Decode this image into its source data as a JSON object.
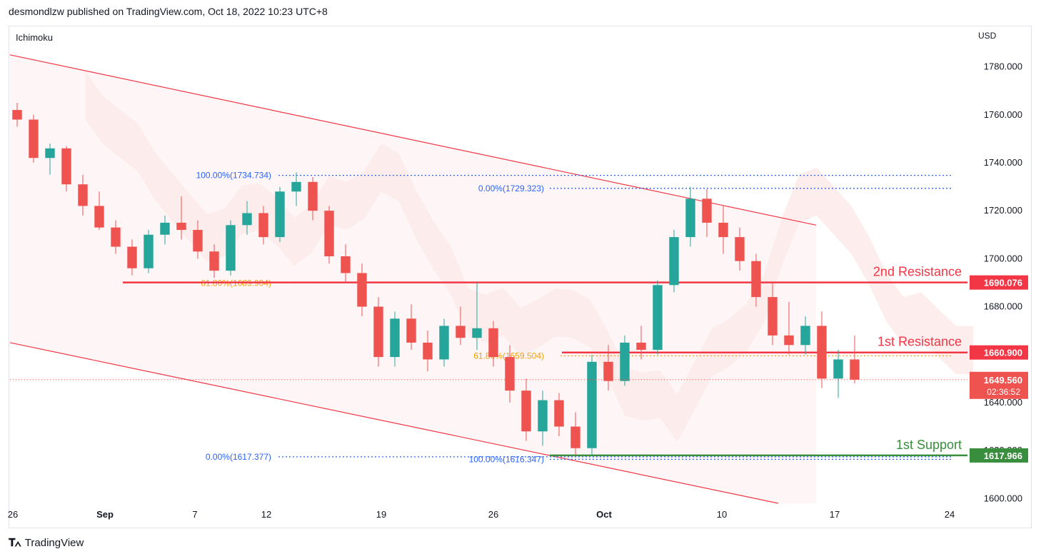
{
  "header": {
    "published_text": "desmondlzw published on TradingView.com, Oct 18, 2022 10:23 UTC+8"
  },
  "indicator_label": "Ichimoku",
  "currency_label": "USD",
  "footer": {
    "brand": "TradingView",
    "logo_icon": "tradingview-logo-icon"
  },
  "colors": {
    "up": "#26a69a",
    "down": "#ef5350",
    "resistance": "#f23645",
    "support": "#388e3c",
    "fib": "#2962ff",
    "fib_mid": "#f59e0b",
    "channel": "#f23645",
    "cloud_red": "#fde8e8",
    "cloud_green": "#e8f3ec"
  },
  "chart_data": {
    "type": "candlestick",
    "title": "",
    "ylim": [
      1595,
      1795
    ],
    "y_ticks": [
      "1600.000",
      "1620.000",
      "1640.000",
      "1660.000",
      "1680.000",
      "1700.000",
      "1720.000",
      "1740.000",
      "1760.000",
      "1780.000"
    ],
    "y_tick_values": [
      1600,
      1620,
      1640,
      1660,
      1680,
      1700,
      1720,
      1740,
      1760,
      1780
    ],
    "x_ticks": [
      {
        "label": "26",
        "bar": 0,
        "bold": false
      },
      {
        "label": "Sep",
        "bar": 5,
        "bold": true
      },
      {
        "label": "7",
        "bar": 13,
        "bold": false
      },
      {
        "label": "12",
        "bar": 16,
        "bold": false
      },
      {
        "label": "19",
        "bar": 21,
        "bold": false
      },
      {
        "label": "26",
        "bar": 26,
        "bold": false
      },
      {
        "label": "Oct",
        "bar": 31,
        "bold": true
      },
      {
        "label": "10",
        "bar": 37,
        "bold": false
      },
      {
        "label": "17",
        "bar": 42,
        "bold": false
      },
      {
        "label": "24",
        "bar": 47,
        "bold": false
      }
    ],
    "levels": [
      {
        "label": "2nd Resistance",
        "value": "1690.076",
        "price": 1690.076,
        "kind": "resistance"
      },
      {
        "label": "1st Resistance",
        "value": "1660.900",
        "price": 1660.9,
        "kind": "resistance"
      },
      {
        "label": "1st Support",
        "value": "1617.966",
        "price": 1617.966,
        "kind": "support"
      }
    ],
    "current_price": {
      "value": "1649.560",
      "price": 1649.56,
      "countdown": "02:36:52"
    },
    "fib_labels": [
      {
        "text": "100.00%(1734.734)",
        "price": 1734.734,
        "color": "fib"
      },
      {
        "text": "0.00%(1729.323)",
        "price": 1729.323,
        "color": "fib"
      },
      {
        "text": "61.80%(1689.904)",
        "price": 1689.904,
        "color": "fib_mid"
      },
      {
        "text": "61.80%(1659.504)",
        "price": 1659.504,
        "color": "fib_mid"
      },
      {
        "text": "0.00%(1617.377)",
        "price": 1617.377,
        "color": "fib"
      },
      {
        "text": "100.00%(1616.347)",
        "price": 1616.347,
        "color": "fib"
      }
    ],
    "candles": [
      [
        1762,
        1765,
        1755,
        1758
      ],
      [
        1758,
        1760,
        1740,
        1742
      ],
      [
        1742,
        1748,
        1735,
        1746
      ],
      [
        1746,
        1747,
        1728,
        1731
      ],
      [
        1731,
        1735,
        1718,
        1722
      ],
      [
        1722,
        1728,
        1712,
        1713
      ],
      [
        1713,
        1716,
        1702,
        1705
      ],
      [
        1705,
        1708,
        1693,
        1696
      ],
      [
        1696,
        1712,
        1694,
        1710
      ],
      [
        1710,
        1718,
        1706,
        1715
      ],
      [
        1715,
        1726,
        1708,
        1712
      ],
      [
        1712,
        1716,
        1700,
        1703
      ],
      [
        1703,
        1706,
        1692,
        1695
      ],
      [
        1695,
        1716,
        1693,
        1714
      ],
      [
        1714,
        1724,
        1710,
        1719
      ],
      [
        1719,
        1722,
        1706,
        1709
      ],
      [
        1709,
        1730,
        1707,
        1728
      ],
      [
        1728,
        1736,
        1722,
        1732
      ],
      [
        1732,
        1734,
        1716,
        1720
      ],
      [
        1720,
        1722,
        1698,
        1701
      ],
      [
        1701,
        1706,
        1690,
        1694
      ],
      [
        1694,
        1698,
        1676,
        1680
      ],
      [
        1680,
        1684,
        1655,
        1659
      ],
      [
        1659,
        1678,
        1655,
        1675
      ],
      [
        1675,
        1681,
        1662,
        1665
      ],
      [
        1665,
        1670,
        1653,
        1658
      ],
      [
        1658,
        1675,
        1655,
        1672
      ],
      [
        1672,
        1680,
        1664,
        1667
      ],
      [
        1667,
        1690,
        1662,
        1671
      ],
      [
        1671,
        1674,
        1655,
        1659
      ],
      [
        1659,
        1664,
        1640,
        1645
      ],
      [
        1645,
        1650,
        1624,
        1628
      ],
      [
        1628,
        1645,
        1622,
        1641
      ],
      [
        1641,
        1644,
        1626,
        1630
      ],
      [
        1630,
        1636,
        1618,
        1621
      ],
      [
        1621,
        1660,
        1618,
        1657
      ],
      [
        1657,
        1664,
        1645,
        1649
      ],
      [
        1649,
        1668,
        1647,
        1665
      ],
      [
        1665,
        1672,
        1658,
        1662
      ],
      [
        1662,
        1691,
        1660,
        1689
      ],
      [
        1689,
        1712,
        1686,
        1709
      ],
      [
        1709,
        1730,
        1705,
        1725
      ],
      [
        1725,
        1729,
        1709,
        1715
      ],
      [
        1715,
        1722,
        1702,
        1709
      ],
      [
        1709,
        1713,
        1695,
        1699
      ],
      [
        1699,
        1702,
        1680,
        1684
      ],
      [
        1684,
        1690,
        1664,
        1668
      ],
      [
        1668,
        1682,
        1660,
        1664
      ],
      [
        1664,
        1676,
        1660,
        1672
      ],
      [
        1672,
        1678,
        1646,
        1650
      ],
      [
        1650,
        1662,
        1642,
        1658
      ],
      [
        1658,
        1668,
        1648,
        1649.56
      ]
    ]
  }
}
